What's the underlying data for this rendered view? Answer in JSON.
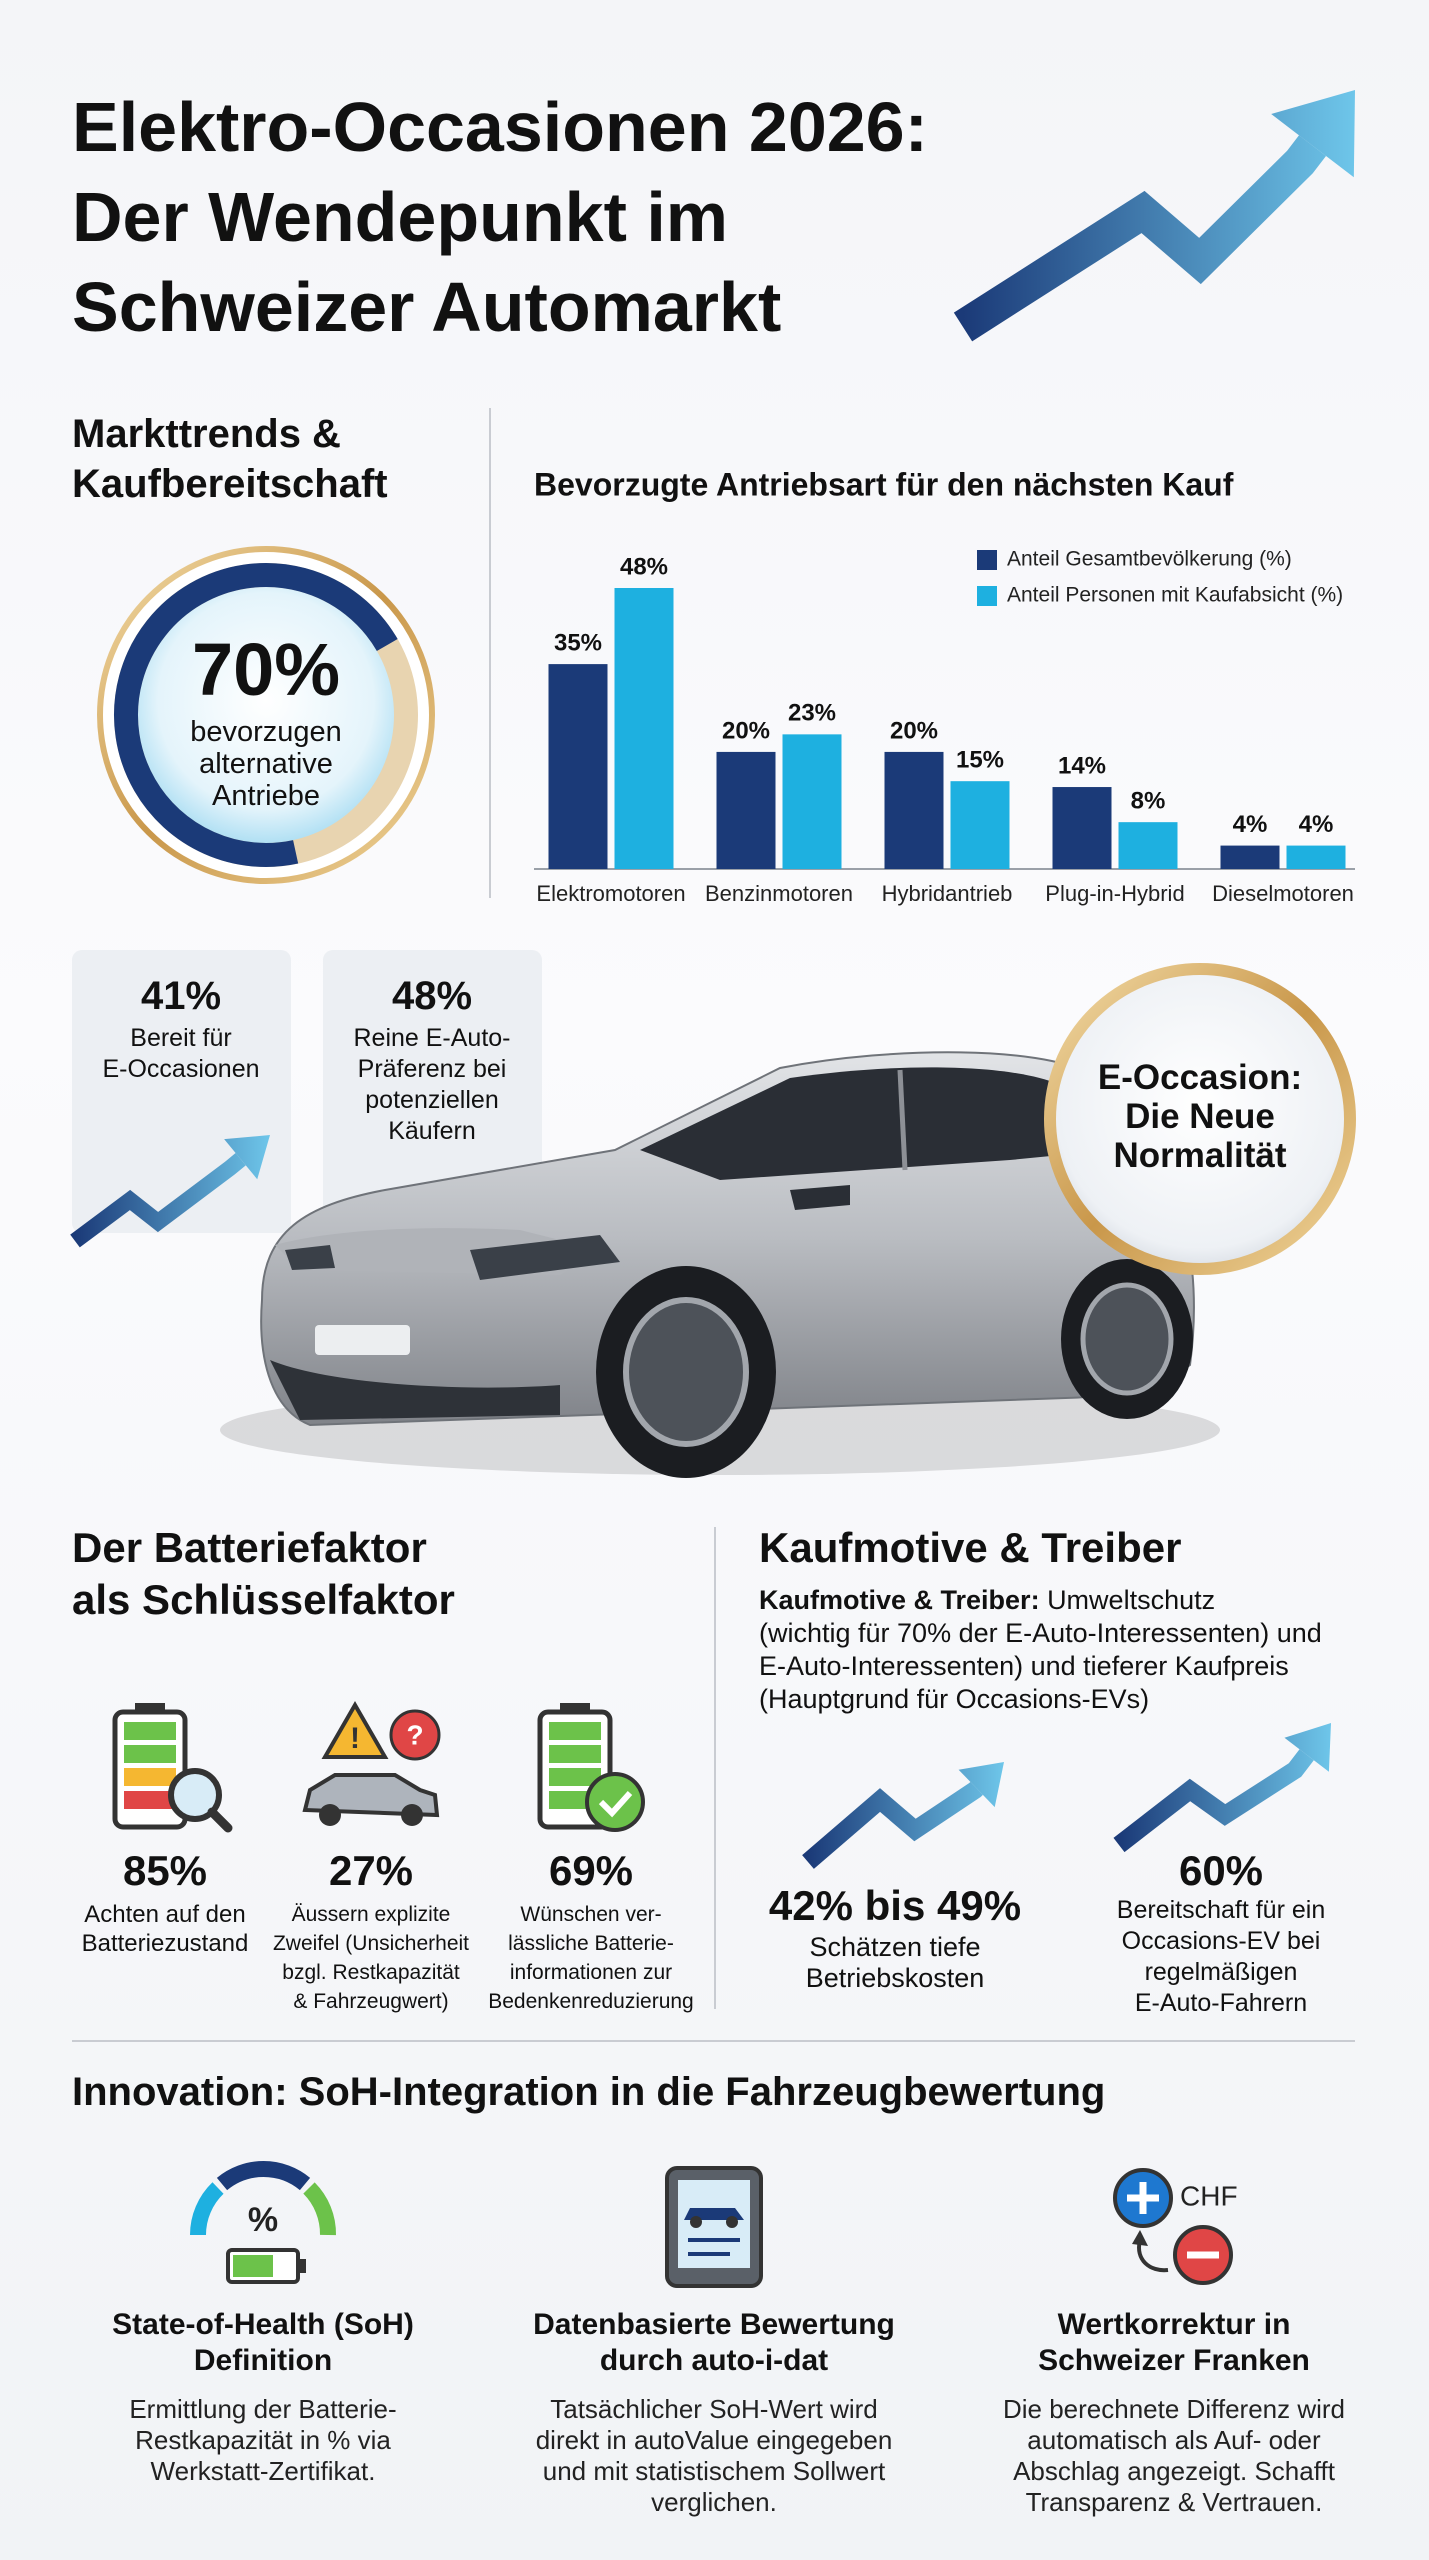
{
  "header": {
    "title": [
      "Elektro-Occasionen 2026:",
      "Der Wendepunkt im",
      "Schweizer Automarkt"
    ]
  },
  "market": {
    "heading": [
      "Markttrends &",
      "Kaufbereitschaft"
    ],
    "ring": {
      "value": "70%",
      "label": [
        "bevorzugen",
        "alternative",
        "Antriebe"
      ]
    },
    "stats": [
      {
        "value": "41%",
        "label": [
          "Bereit für",
          "E-Occasionen"
        ]
      },
      {
        "value": "48%",
        "label": [
          "Reine E-Auto-",
          "Präferenz bei",
          "potenziellen",
          "Käufern"
        ]
      }
    ],
    "badge": [
      "E-Occasion:",
      "Die Neue",
      "Normalität"
    ]
  },
  "chart_data": {
    "type": "bar",
    "title": "Bevorzugte Antriebsart für den nächsten Kauf",
    "categories": [
      "Elektromotoren",
      "Benzinmotoren",
      "Hybridantrieb",
      "Plug-in-Hybrid",
      "Dieselmotoren"
    ],
    "series": [
      {
        "name": "Anteil Gesamtbevölkerung (%)",
        "color": "#1b3a78",
        "values": [
          35,
          20,
          20,
          14,
          4
        ],
        "value_labels": [
          "35%",
          "20%",
          "20%",
          "14%",
          "4%"
        ]
      },
      {
        "name": "Anteil Personen mit Kaufabsicht (%)",
        "color": "#1eb0e0",
        "values": [
          48,
          23,
          15,
          8,
          4
        ],
        "value_labels": [
          "48%",
          "23%",
          "15%",
          "8%",
          "4%"
        ]
      }
    ],
    "legend": "upper right"
  },
  "battery": {
    "heading": [
      "Der Batteriefaktor",
      "als Schlüsselfaktor"
    ],
    "stats": [
      {
        "value": "85%",
        "label": [
          "Achten auf den",
          "Batteriezustand"
        ]
      },
      {
        "value": "27%",
        "label": [
          "Äussern explizite",
          "Zweifel (Unsicherheit",
          "bzgl. Restkapazität",
          "& Fahrzeugwert)"
        ]
      },
      {
        "value": "69%",
        "label": [
          "Wünschen ver-",
          "lässliche Batterie-",
          "informationen zur",
          "Bedenkenreduzierung"
        ]
      }
    ]
  },
  "motives": {
    "heading": "Kaufmotive & Treiber",
    "lead": "Kaufmotive & Treiber:",
    "lines": [
      "Umweltschutz",
      "(wichtig für 70% der E-Auto-Interessenten) und",
      "E-Auto-Interessenten) und tieferer Kaufpreis",
      "(Hauptgrund für Occasions-EVs)"
    ],
    "stats": [
      {
        "value": "42% bis 49%",
        "label": [
          "Schätzen tiefe",
          "Betriebskosten"
        ]
      },
      {
        "value": "60%",
        "label": [
          "Bereitschaft für ein",
          "Occasions-EV bei",
          "regelmäßigen",
          "E-Auto-Fahrern"
        ]
      }
    ]
  },
  "innovation": {
    "heading": "Innovation: SoH-Integration in die Fahrzeugbewertung",
    "items": [
      {
        "icon_label": "%",
        "title": [
          "State-of-Health (SoH)",
          "Definition"
        ],
        "text": [
          "Ermittlung der Batterie-",
          "Restkapazität in % via",
          "Werkstatt-Zertifikat."
        ]
      },
      {
        "title": [
          "Datenbasierte Bewertung",
          "durch auto-i-dat"
        ],
        "text": [
          "Tatsächlicher SoH-Wert wird",
          "direkt in autoValue eingegeben",
          "und mit statistischem Sollwert",
          "verglichen."
        ]
      },
      {
        "icon_label": "CHF",
        "title": [
          "Wertkorrektur in",
          "Schweizer Franken"
        ],
        "text": [
          "Die berechnete Differenz wird",
          "automatisch als Auf- oder",
          "Abschlag angezeigt. Schafft",
          "Transparenz & Vertrauen."
        ]
      }
    ]
  }
}
